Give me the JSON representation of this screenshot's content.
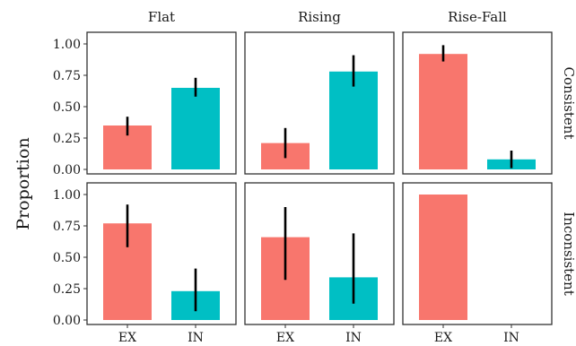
{
  "chart_data": {
    "type": "bar",
    "ylabel": "Proportion",
    "xlabel": "",
    "ylim": [
      0,
      1.05
    ],
    "yticks": [
      0.0,
      0.25,
      0.5,
      0.75,
      1.0
    ],
    "ytick_labels": [
      "0.00",
      "0.25",
      "0.50",
      "0.75",
      "1.00"
    ],
    "categories": [
      "EX",
      "IN"
    ],
    "colors": {
      "EX": "#F8766D",
      "IN": "#00BFC4"
    },
    "columns": [
      "Flat",
      "Rising",
      "Rise-Fall"
    ],
    "rows": [
      "Consistent",
      "Inconsistent"
    ],
    "grid": false,
    "legend": "none",
    "panels": [
      {
        "row": "Consistent",
        "col": "Flat",
        "bars": [
          {
            "category": "EX",
            "value": 0.35,
            "err_low": 0.27,
            "err_high": 0.42
          },
          {
            "category": "IN",
            "value": 0.65,
            "err_low": 0.58,
            "err_high": 0.73
          }
        ]
      },
      {
        "row": "Consistent",
        "col": "Rising",
        "bars": [
          {
            "category": "EX",
            "value": 0.21,
            "err_low": 0.09,
            "err_high": 0.33
          },
          {
            "category": "IN",
            "value": 0.78,
            "err_low": 0.66,
            "err_high": 0.91
          }
        ]
      },
      {
        "row": "Consistent",
        "col": "Rise-Fall",
        "bars": [
          {
            "category": "EX",
            "value": 0.92,
            "err_low": 0.86,
            "err_high": 0.99
          },
          {
            "category": "IN",
            "value": 0.08,
            "err_low": 0.01,
            "err_high": 0.15
          }
        ]
      },
      {
        "row": "Inconsistent",
        "col": "Flat",
        "bars": [
          {
            "category": "EX",
            "value": 0.77,
            "err_low": 0.58,
            "err_high": 0.92
          },
          {
            "category": "IN",
            "value": 0.23,
            "err_low": 0.07,
            "err_high": 0.41
          }
        ]
      },
      {
        "row": "Inconsistent",
        "col": "Rising",
        "bars": [
          {
            "category": "EX",
            "value": 0.66,
            "err_low": 0.32,
            "err_high": 0.9
          },
          {
            "category": "IN",
            "value": 0.34,
            "err_low": 0.13,
            "err_high": 0.69
          }
        ]
      },
      {
        "row": "Inconsistent",
        "col": "Rise-Fall",
        "bars": [
          {
            "category": "EX",
            "value": 1.0,
            "err_low": null,
            "err_high": null
          },
          {
            "category": "IN",
            "value": 0.0,
            "err_low": null,
            "err_high": null
          }
        ]
      }
    ]
  }
}
